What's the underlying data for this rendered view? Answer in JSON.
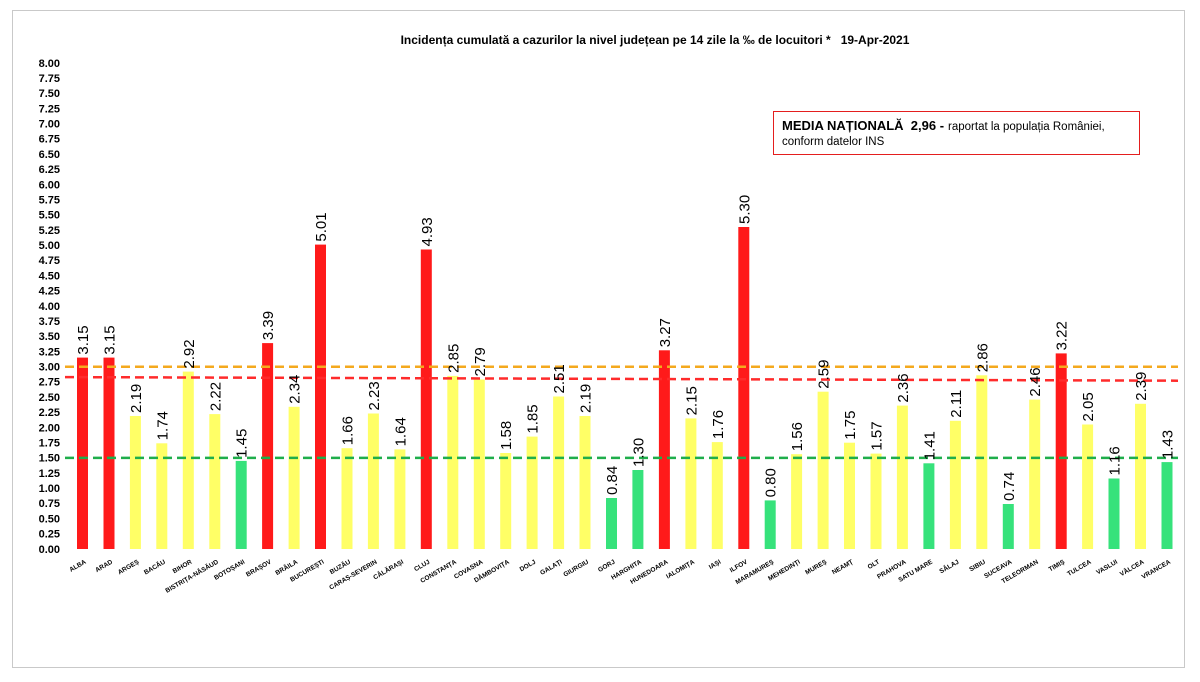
{
  "chart_data": {
    "type": "bar",
    "title": "Incidența cumulată a cazurilor la nivel județean pe 14 zile la ‰ de locuitori *   19-Apr-2021",
    "ylim": [
      0,
      8
    ],
    "yticks": [
      "0.00",
      "0.25",
      "0.50",
      "0.75",
      "1.00",
      "1.25",
      "1.50",
      "1.75",
      "2.00",
      "2.25",
      "2.50",
      "2.75",
      "3.00",
      "3.25",
      "3.50",
      "3.75",
      "4.00",
      "4.25",
      "4.50",
      "4.75",
      "5.00",
      "5.25",
      "5.50",
      "5.75",
      "6.00",
      "6.25",
      "6.50",
      "6.75",
      "7.00",
      "7.25",
      "7.50",
      "7.75",
      "8.00"
    ],
    "grid": false,
    "categories": [
      "ALBA",
      "ARAD",
      "ARGEȘ",
      "BACĂU",
      "BIHOR",
      "BISTRIȚA-NĂSĂUD",
      "BOTOȘANI",
      "BRAȘOV",
      "BRĂILA",
      "BUCUREȘTI",
      "BUZĂU",
      "CARAȘ-SEVERIN",
      "CĂLĂRAȘI",
      "CLUJ",
      "CONSTANȚA",
      "COVASNA",
      "DÂMBOVIȚA",
      "DOLJ",
      "GALAȚI",
      "GIURGIU",
      "GORJ",
      "HARGHITA",
      "HUNEDOARA",
      "IALOMIȚA",
      "IAȘI",
      "ILFOV",
      "MARAMUREȘ",
      "MEHEDINȚI",
      "MUREȘ",
      "NEAMȚ",
      "OLT",
      "PRAHOVA",
      "SATU MARE",
      "SĂLAJ",
      "SIBIU",
      "SUCEAVA",
      "TELEORMAN",
      "TIMIȘ",
      "TULCEA",
      "VASLUI",
      "VÂLCEA",
      "VRANCEA"
    ],
    "values": [
      3.15,
      3.15,
      2.19,
      1.74,
      2.92,
      2.22,
      1.45,
      3.39,
      2.34,
      5.01,
      1.66,
      2.23,
      1.64,
      4.93,
      2.85,
      2.79,
      1.58,
      1.85,
      2.51,
      2.19,
      0.84,
      1.3,
      3.27,
      2.15,
      1.76,
      5.3,
      0.8,
      1.56,
      2.59,
      1.75,
      1.57,
      2.36,
      1.41,
      2.11,
      2.86,
      0.74,
      2.46,
      3.22,
      2.05,
      1.16,
      2.39,
      1.43
    ],
    "bar_colors": [
      "red",
      "red",
      "yellow",
      "yellow",
      "yellow",
      "yellow",
      "green",
      "red",
      "yellow",
      "red",
      "yellow",
      "yellow",
      "yellow",
      "red",
      "yellow",
      "yellow",
      "yellow",
      "yellow",
      "yellow",
      "yellow",
      "green",
      "green",
      "red",
      "yellow",
      "yellow",
      "red",
      "green",
      "yellow",
      "yellow",
      "yellow",
      "yellow",
      "yellow",
      "green",
      "yellow",
      "yellow",
      "green",
      "yellow",
      "red",
      "yellow",
      "green",
      "yellow",
      "green"
    ],
    "palette": {
      "red": "#ff1a1a",
      "yellow": "#ffff66",
      "green": "#36e27b"
    },
    "reference_lines": [
      {
        "style": "dashed",
        "color": "#f4a91e",
        "y_start": 3.0,
        "y_end": 3.0
      },
      {
        "style": "dashed",
        "color": "#ff2b2b",
        "y_start": 2.83,
        "y_end": 2.77
      },
      {
        "style": "dashed",
        "color": "#1fae4b",
        "y_start": 1.5,
        "y_end": 1.5
      }
    ]
  },
  "annotation_box": {
    "bold_text": "MEDIA NAȚIONALĂ  2,96 -",
    "text_line1": "raportat la populația României,",
    "text_line2": "conform datelor INS"
  }
}
